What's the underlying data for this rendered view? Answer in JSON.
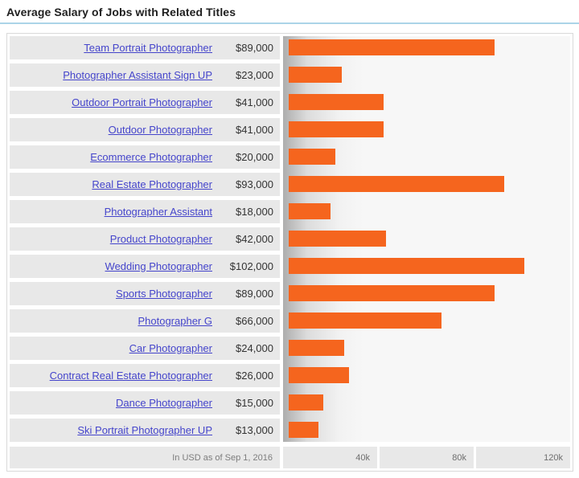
{
  "title": "Average Salary of Jobs with Related Titles",
  "colors": {
    "bar": "#f5651e",
    "link": "#4545cb",
    "cell_gray": "#e8e8e8",
    "title_rule_blue": "#abd4e8"
  },
  "footer": {
    "note": "In USD as of Sep 1, 2016",
    "ticks": [
      "40k",
      "80k",
      "120k"
    ]
  },
  "chart_data": {
    "type": "bar",
    "orientation": "horizontal",
    "title": "Average Salary of Jobs with Related Titles",
    "xlabel": "",
    "ylabel": "",
    "x_ticks": [
      "40k",
      "80k",
      "120k"
    ],
    "xlim": [
      0,
      121700
    ],
    "grid": false,
    "legend": false,
    "note": "In USD as of Sep 1, 2016",
    "bar_color": "#f5651e",
    "categories": [
      "Team Portrait Photographer",
      "Photographer Assistant Sign UP",
      "Outdoor Portrait Photographer",
      "Outdoor Photographer",
      "Ecommerce Photographer",
      "Real Estate Photographer",
      "Photographer Assistant",
      "Product Photographer",
      "Wedding Photographer",
      "Sports Photographer",
      "Photographer G",
      "Car Photographer",
      "Contract Real Estate Photographer",
      "Dance Photographer",
      "Ski Portrait Photographer UP"
    ],
    "values": [
      89000,
      23000,
      41000,
      41000,
      20000,
      93000,
      18000,
      42000,
      102000,
      89000,
      66000,
      24000,
      26000,
      15000,
      13000
    ],
    "value_labels": [
      "$89,000",
      "$23,000",
      "$41,000",
      "$41,000",
      "$20,000",
      "$93,000",
      "$18,000",
      "$42,000",
      "$102,000",
      "$89,000",
      "$66,000",
      "$24,000",
      "$26,000",
      "$15,000",
      "$13,000"
    ]
  }
}
